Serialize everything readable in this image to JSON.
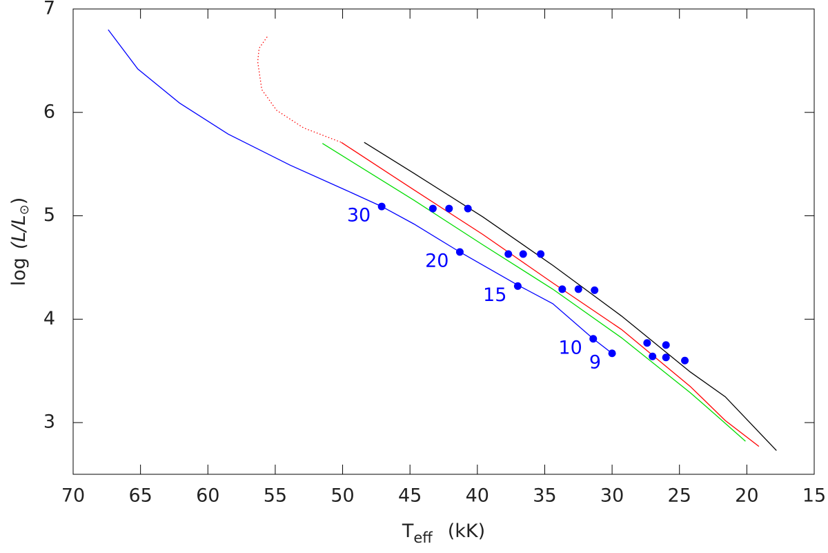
{
  "chart_data": {
    "type": "line",
    "xlabel": [
      "T",
      "eff",
      "(kK)"
    ],
    "ylabel": [
      "log",
      "(L/L",
      "⊙",
      ")"
    ],
    "xlim": [
      70,
      15
    ],
    "ylim": [
      2.5,
      7
    ],
    "xticks": [
      70,
      65,
      60,
      55,
      50,
      45,
      40,
      35,
      30,
      25,
      20,
      15
    ],
    "yticks": [
      3,
      4,
      5,
      6,
      7
    ],
    "series": [
      {
        "color": "#0000ff",
        "style": "solid",
        "x": [
          67.4,
          65.2,
          62.1,
          58.5,
          53.9,
          49.8,
          47.1,
          44.7,
          41.3,
          37.0,
          34.4,
          31.4,
          30.0
        ],
        "values": [
          6.8,
          6.42,
          6.09,
          5.79,
          5.49,
          5.25,
          5.09,
          4.92,
          4.65,
          4.33,
          4.15,
          3.81,
          3.67
        ]
      },
      {
        "color": "#ff0000",
        "style": "dotted",
        "x": [
          55.6,
          56.2,
          56.3,
          56.0,
          54.9,
          52.9,
          50.1
        ],
        "values": [
          6.73,
          6.62,
          6.49,
          6.22,
          6.02,
          5.85,
          5.71
        ]
      },
      {
        "color": "#ff0000",
        "style": "solid",
        "x": [
          50.1,
          44.7,
          39.6,
          34.4,
          29.3,
          24.2,
          21.6,
          19.1
        ],
        "values": [
          5.71,
          5.25,
          4.82,
          4.35,
          3.9,
          3.35,
          3.02,
          2.77
        ]
      },
      {
        "color": "#00dd00",
        "style": "solid",
        "x": [
          51.5,
          44.7,
          39.6,
          34.4,
          29.3,
          24.2,
          22.1,
          20.1
        ],
        "values": [
          5.7,
          5.15,
          4.72,
          4.29,
          3.82,
          3.29,
          3.05,
          2.82
        ]
      },
      {
        "color": "#000000",
        "style": "solid",
        "x": [
          48.4,
          44.7,
          39.6,
          34.4,
          29.3,
          24.2,
          21.6,
          17.8
        ],
        "values": [
          5.71,
          5.41,
          4.99,
          4.52,
          4.03,
          3.49,
          3.25,
          2.73
        ]
      },
      {
        "color": "#0000ff",
        "style": "points",
        "x": [
          47.1,
          41.3,
          37.0,
          31.4,
          30.0
        ],
        "values": [
          5.09,
          4.65,
          4.32,
          3.81,
          3.67
        ],
        "point_labels": [
          "30",
          "20",
          "15",
          "10",
          "9"
        ]
      },
      {
        "color": "#0000ff",
        "style": "points",
        "x": [
          43.3,
          42.1,
          40.7,
          37.7,
          36.6,
          35.3,
          33.7,
          32.5,
          31.3,
          27.4,
          26.0,
          27.0,
          26.0,
          24.6
        ],
        "values": [
          5.07,
          5.07,
          5.07,
          4.63,
          4.63,
          4.63,
          4.29,
          4.29,
          4.28,
          3.77,
          3.75,
          3.64,
          3.63,
          3.6
        ]
      }
    ]
  }
}
